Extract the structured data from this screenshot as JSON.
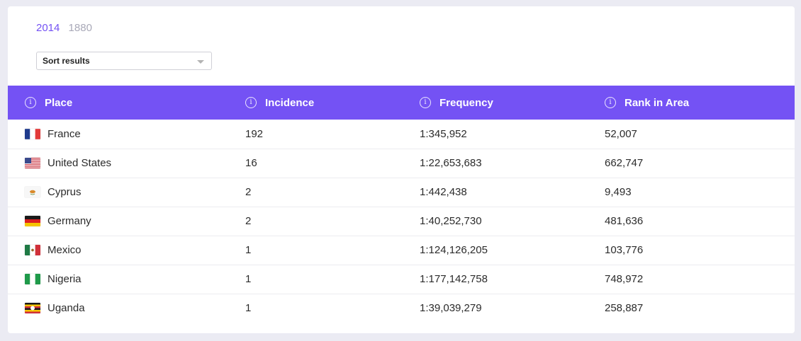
{
  "years": [
    {
      "label": "2014",
      "active": true
    },
    {
      "label": "1880",
      "active": false
    }
  ],
  "sort": {
    "label": "Sort results"
  },
  "table": {
    "header_bg": "#7452f4",
    "columns": [
      {
        "label": "Place"
      },
      {
        "label": "Incidence"
      },
      {
        "label": "Frequency"
      },
      {
        "label": "Rank in Area"
      }
    ],
    "rows": [
      {
        "flag": "france-flag-icon",
        "place": "France",
        "incidence": "192",
        "frequency": "1:345,952",
        "rank": "52,007"
      },
      {
        "flag": "united-states-flag-icon",
        "place": "United States",
        "incidence": "16",
        "frequency": "1:22,653,683",
        "rank": "662,747"
      },
      {
        "flag": "cyprus-flag-icon",
        "place": "Cyprus",
        "incidence": "2",
        "frequency": "1:442,438",
        "rank": "9,493"
      },
      {
        "flag": "germany-flag-icon",
        "place": "Germany",
        "incidence": "2",
        "frequency": "1:40,252,730",
        "rank": "481,636"
      },
      {
        "flag": "mexico-flag-icon",
        "place": "Mexico",
        "incidence": "1",
        "frequency": "1:124,126,205",
        "rank": "103,776"
      },
      {
        "flag": "nigeria-flag-icon",
        "place": "Nigeria",
        "incidence": "1",
        "frequency": "1:177,142,758",
        "rank": "748,972"
      },
      {
        "flag": "uganda-flag-icon",
        "place": "Uganda",
        "incidence": "1",
        "frequency": "1:39,039,279",
        "rank": "258,887"
      }
    ]
  }
}
